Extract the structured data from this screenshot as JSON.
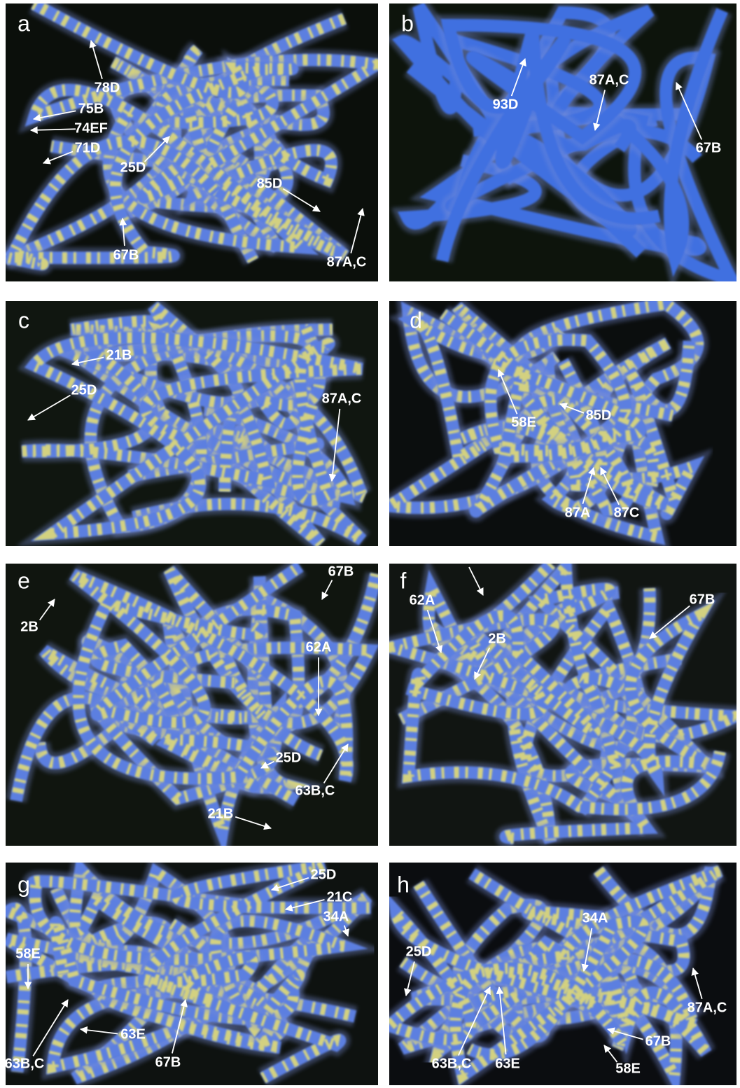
{
  "panels": [
    {
      "letter": "a",
      "labels": [
        "78D",
        "75B",
        "74EF",
        "71D",
        "25D",
        "85D",
        "67B",
        "87A,C"
      ]
    },
    {
      "letter": "b",
      "labels": [
        "93D",
        "87A,C",
        "67B"
      ]
    },
    {
      "letter": "c",
      "labels": [
        "21B",
        "25D",
        "87A,C"
      ]
    },
    {
      "letter": "d",
      "labels": [
        "58E",
        "85D",
        "87A",
        "87C"
      ]
    },
    {
      "letter": "e",
      "labels": [
        "2B",
        "67B",
        "62A",
        "25D",
        "63B,C",
        "21B"
      ]
    },
    {
      "letter": "f",
      "labels": [
        "62A",
        "2B",
        "67B"
      ]
    },
    {
      "letter": "g",
      "labels": [
        "25D",
        "21C",
        "34A",
        "58E",
        "63E",
        "63B,C",
        "67B"
      ]
    },
    {
      "letter": "h",
      "labels": [
        "34A",
        "25D",
        "87A,C",
        "67B",
        "63B,C",
        "63E",
        "58E"
      ]
    }
  ]
}
